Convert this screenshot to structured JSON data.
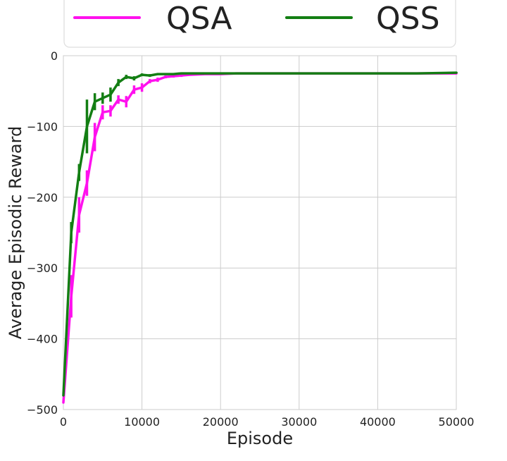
{
  "chart_data": {
    "type": "line",
    "title": "",
    "xlabel": "Episode",
    "ylabel": "Average Episodic Reward",
    "xlim": [
      0,
      50000
    ],
    "ylim": [
      -500,
      0
    ],
    "x_ticks": [
      0,
      10000,
      20000,
      30000,
      40000,
      50000
    ],
    "y_ticks": [
      -500,
      -400,
      -300,
      -200,
      -100,
      0
    ],
    "x_tick_labels": [
      "0",
      "10000",
      "20000",
      "30000",
      "40000",
      "50000"
    ],
    "y_tick_labels": [
      "−500",
      "−400",
      "−300",
      "−200",
      "−100",
      "0"
    ],
    "grid": true,
    "legend_position": "top, outside plot",
    "series": [
      {
        "name": "QSA",
        "color": "#ff11ee",
        "x": [
          0,
          1000,
          2000,
          3000,
          4000,
          5000,
          6000,
          7000,
          8000,
          9000,
          10000,
          11000,
          12000,
          13000,
          14000,
          15000,
          16000,
          18000,
          20000,
          22000,
          25000,
          30000,
          35000,
          40000,
          45000,
          50000
        ],
        "y": [
          -490,
          -340,
          -225,
          -180,
          -115,
          -80,
          -78,
          -62,
          -65,
          -48,
          -45,
          -36,
          -34,
          -30,
          -29,
          -28,
          -27,
          -26,
          -26,
          -25,
          -25,
          -25,
          -25,
          -25,
          -25,
          -25
        ],
        "error": [
          0,
          30,
          25,
          18,
          20,
          10,
          8,
          6,
          8,
          6,
          6,
          3,
          3,
          2,
          2,
          2,
          1,
          1,
          1,
          1,
          1,
          1,
          1,
          1,
          1,
          1
        ]
      },
      {
        "name": "QSS",
        "color": "#137e13",
        "x": [
          0,
          1000,
          2000,
          3000,
          4000,
          5000,
          6000,
          7000,
          8000,
          9000,
          10000,
          11000,
          12000,
          13000,
          14000,
          15000,
          16000,
          18000,
          20000,
          22000,
          25000,
          30000,
          35000,
          40000,
          45000,
          50000
        ],
        "y": [
          -480,
          -250,
          -165,
          -100,
          -65,
          -60,
          -55,
          -38,
          -30,
          -32,
          -27,
          -28,
          -26,
          -26,
          -26,
          -25,
          -25,
          -25,
          -25,
          -25,
          -25,
          -25,
          -25,
          -25,
          -25,
          -24
        ],
        "error": [
          0,
          15,
          12,
          38,
          12,
          8,
          10,
          5,
          3,
          3,
          2,
          2,
          1,
          1,
          1,
          1,
          1,
          1,
          1,
          1,
          1,
          1,
          1,
          1,
          1,
          1
        ]
      }
    ]
  }
}
